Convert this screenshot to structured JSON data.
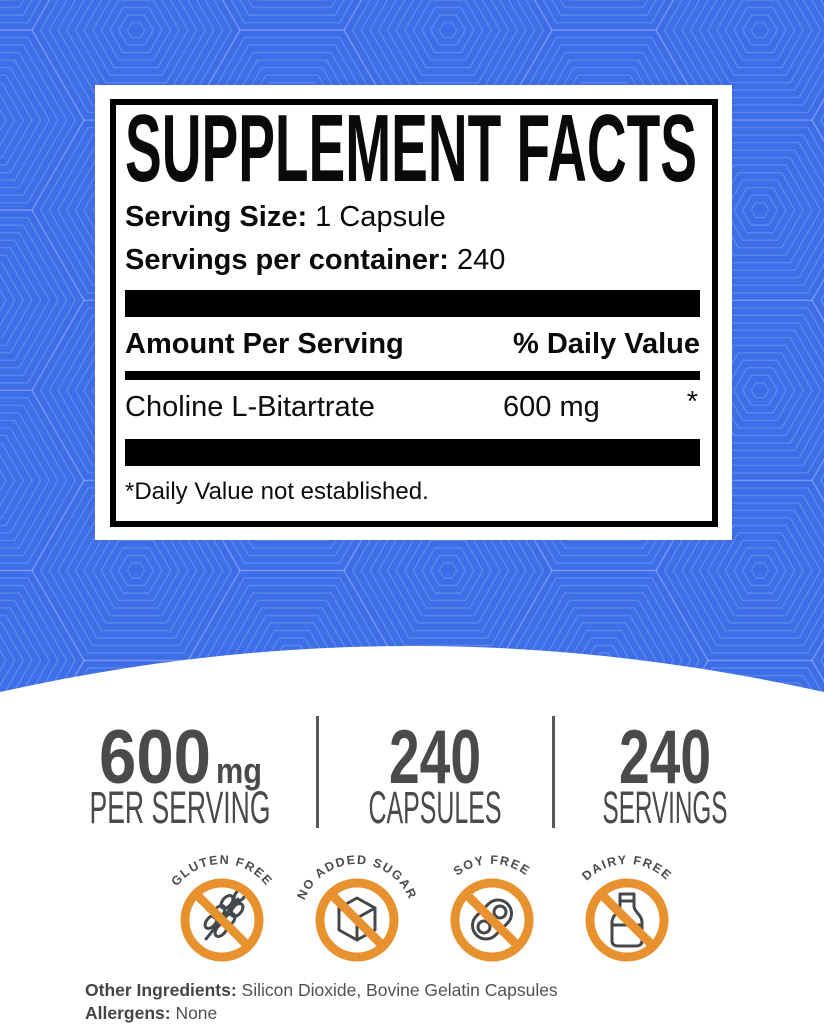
{
  "colors": {
    "background_blue": "#3D6EE7",
    "accent_orange": "#E8912F",
    "stat_gray": "#4A4A4C",
    "panel_black": "#000000"
  },
  "facts_panel": {
    "title": "SUPPLEMENT FACTS",
    "serving_size_label": "Serving Size:",
    "serving_size_value": " 1 Capsule",
    "servings_label": "Servings per container:",
    "servings_value": " 240",
    "col_amount": "Amount Per Serving",
    "col_dv": "% Daily Value",
    "rows": [
      {
        "name": "Choline L-Bitartrate",
        "amount": "600 mg",
        "dv": "*"
      }
    ],
    "footnote": "*Daily Value not established."
  },
  "stats": [
    {
      "value": "600",
      "unit": "mg",
      "label": "PER SERVING"
    },
    {
      "value": "240",
      "unit": "",
      "label": "CAPSULES"
    },
    {
      "value": "240",
      "unit": "",
      "label": "SERVINGS"
    }
  ],
  "badges": [
    {
      "label": "GLUTEN FREE",
      "icon": "wheat-icon"
    },
    {
      "label": "NO ADDED SUGAR",
      "icon": "sugar-cube-icon"
    },
    {
      "label": "SOY FREE",
      "icon": "soybean-icon"
    },
    {
      "label": "DAIRY FREE",
      "icon": "milk-bottle-icon"
    }
  ],
  "footer": {
    "other_ingredients_label": "Other Ingredients:",
    "other_ingredients_value": " Silicon Dioxide, Bovine Gelatin Capsules",
    "allergens_label": "Allergens:",
    "allergens_value": " None"
  }
}
